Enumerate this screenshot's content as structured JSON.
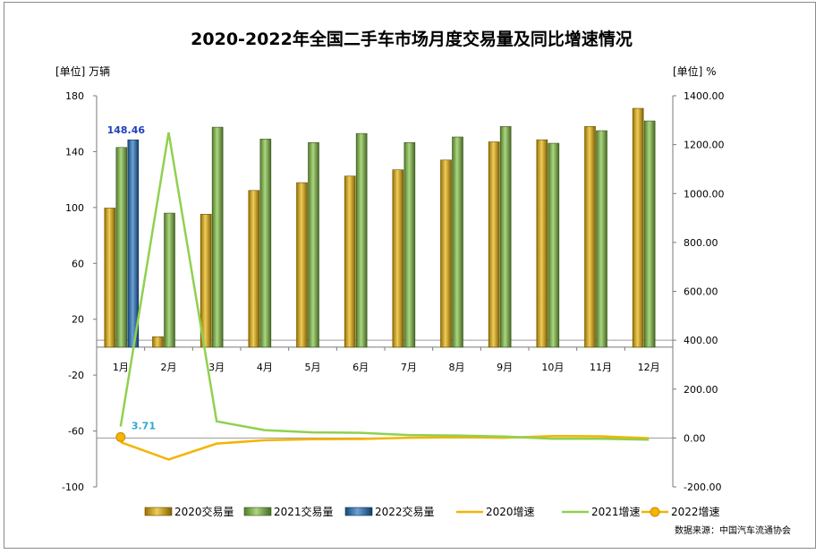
{
  "chart_data": {
    "type": "bar",
    "title": "2020-2022年全国二手车市场月度交易量及同比增速情况",
    "left_unit": "[单位] 万辆",
    "right_unit": "[单位] %",
    "categories": [
      "1月",
      "2月",
      "3月",
      "4月",
      "5月",
      "6月",
      "7月",
      "8月",
      "9月",
      "10月",
      "11月",
      "12月"
    ],
    "y_left": {
      "min": -100,
      "max": 180,
      "ticks": [
        -100,
        -60,
        -20,
        20,
        60,
        100,
        140,
        180
      ]
    },
    "y_right": {
      "min": -200,
      "max": 1400,
      "ticks": [
        "-200.00",
        "0.00",
        "200.00",
        "400.00",
        "600.00",
        "800.00",
        "1000.00",
        "1200.00",
        "1400.00"
      ]
    },
    "bar_series": [
      {
        "name": "2020交易量",
        "color": "#e8b000",
        "values": [
          99.6,
          7.5,
          95.2,
          112.2,
          117.8,
          122.5,
          127.0,
          134.0,
          147.0,
          148.5,
          158.0,
          171.0
        ]
      },
      {
        "name": "2021交易量",
        "color": "#7fbf3f",
        "values": [
          143.0,
          96.0,
          157.5,
          149.0,
          146.5,
          153.0,
          146.5,
          150.5,
          158.0,
          146.0,
          155.0,
          162.0
        ]
      },
      {
        "name": "2022交易量",
        "color": "#1f6fbf",
        "values": [
          148.46,
          null,
          null,
          null,
          null,
          null,
          null,
          null,
          null,
          null,
          null,
          null
        ]
      }
    ],
    "line_series": [
      {
        "name": "2020增速",
        "color": "#f5b400",
        "values": [
          -17,
          -88,
          -23,
          -9,
          -5,
          -4,
          1,
          3,
          1,
          8,
          7,
          -1
        ]
      },
      {
        "name": "2021增速",
        "color": "#8fd14f",
        "values": [
          47,
          1250,
          68,
          32,
          23,
          21,
          12,
          10,
          6,
          -3,
          -3,
          -7
        ]
      },
      {
        "name": "2022增速",
        "color": "#f5b400",
        "values": [
          3.71,
          null,
          null,
          null,
          null,
          null,
          null,
          null,
          null,
          null,
          null,
          null
        ]
      }
    ],
    "data_labels": [
      {
        "series": "2022交易量",
        "category": "1月",
        "text": "148.46"
      },
      {
        "series": "2022增速",
        "category": "1月",
        "text": "3.71"
      }
    ],
    "legend": {
      "position": "bottom"
    },
    "source": "数据来源：中国汽车流通协会"
  }
}
